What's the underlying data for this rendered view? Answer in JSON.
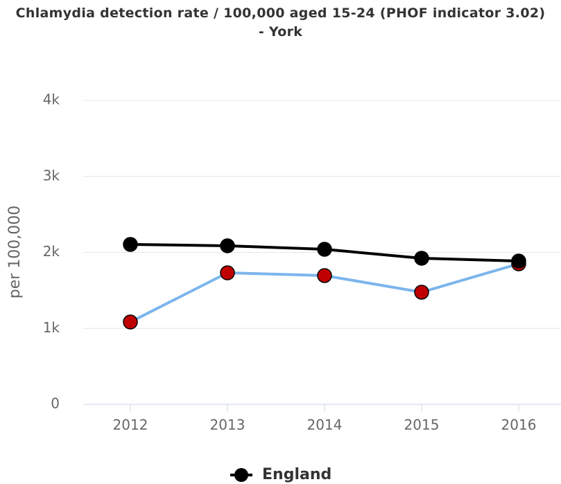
{
  "chart_data": {
    "type": "line",
    "title": "Chlamydia detection rate / 100,000 aged 15-24 (PHOF indicator 3.02) - York",
    "y_label": "per 100,000",
    "categories": [
      "2012",
      "2013",
      "2014",
      "2015",
      "2016"
    ],
    "series": [
      {
        "name": "England",
        "color": "#000000",
        "marker_color": "#000000",
        "values": [
          2105,
          2087,
          2041,
          1923,
          1886
        ]
      },
      {
        "color": "#7cb5ec",
        "marker_color": "#c00000",
        "values": [
          1084,
          1731,
          1695,
          1476,
          1850
        ]
      }
    ],
    "ylim": [
      0,
      4000
    ],
    "yticks": [
      0,
      {
        "value": 1000,
        "label": "1k"
      },
      {
        "value": 2000,
        "label": "2k"
      },
      {
        "value": 3000,
        "label": "3k"
      },
      {
        "value": 4000,
        "label": "4k"
      }
    ],
    "grid": true,
    "legend": "bottom"
  }
}
